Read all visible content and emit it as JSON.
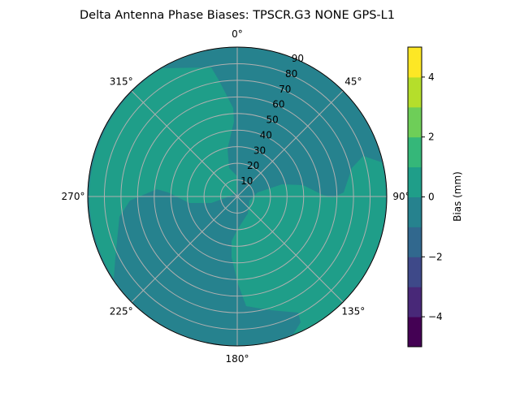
{
  "chart_data": {
    "type": "heatmap",
    "subtype": "polar-contour",
    "title": "Delta Antenna Phase Biases: TPSCR.G3        NONE GPS-L1",
    "angular_ticks": [
      "0°",
      "45°",
      "90°",
      "135°",
      "180°",
      "225°",
      "270°",
      "315°"
    ],
    "angular_direction": "clockwise",
    "angular_zero": "top",
    "radial_ticks": [
      10,
      20,
      30,
      40,
      50,
      60,
      70,
      80,
      90
    ],
    "radial_range": [
      0,
      90
    ],
    "grid": true,
    "colorbar": {
      "label": "Bias (mm)",
      "range": [
        -5,
        5
      ],
      "levels": [
        -5,
        -4,
        -3,
        -2,
        -1,
        0,
        1,
        2,
        3,
        4,
        5
      ],
      "ticks": [
        "−4",
        "−2",
        "0",
        "2",
        "4"
      ],
      "tick_values": [
        -4,
        -2,
        0,
        2,
        4
      ],
      "colormap": "viridis",
      "colors": [
        "#440154",
        "#482878",
        "#3e4989",
        "#31688e",
        "#26828e",
        "#1f9e89",
        "#35b779",
        "#6ece58",
        "#b5de2b",
        "#fde725"
      ]
    },
    "regions": [
      {
        "level_range": [
          -1,
          0
        ],
        "color": "#26828e",
        "description_area": "background"
      },
      {
        "level_range": [
          0,
          1
        ],
        "color": "#1f9e89",
        "description_area": "west / northwest"
      },
      {
        "level_range": [
          0,
          1
        ],
        "color": "#1f9e89",
        "description_area": "east / southeast"
      }
    ]
  }
}
